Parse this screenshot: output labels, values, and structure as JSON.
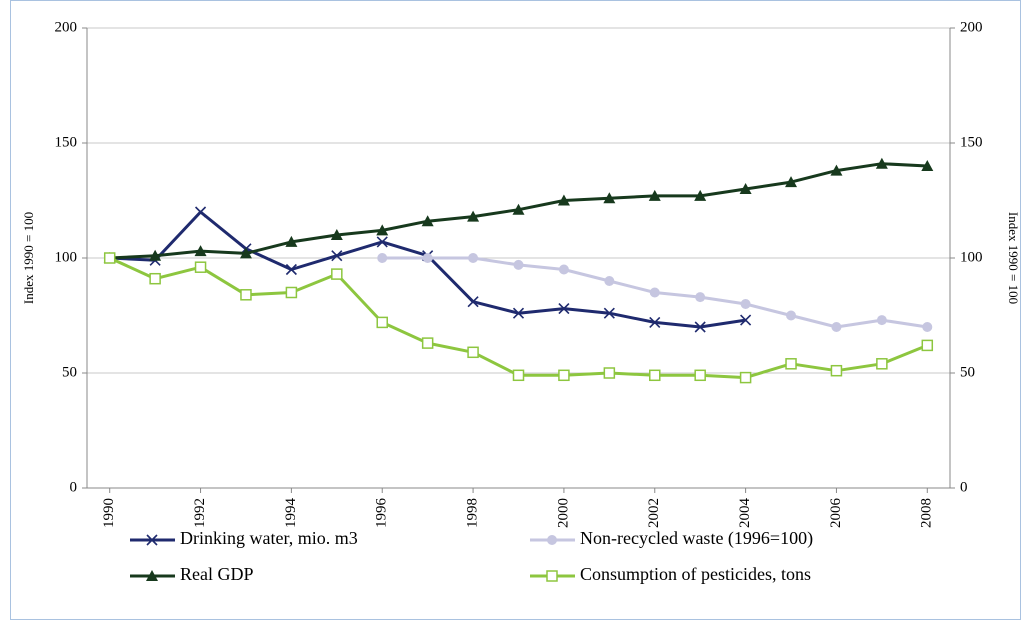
{
  "chart_data": {
    "type": "line",
    "y_label": "Index 1990 = 100",
    "y2_label": "Index 1990 = 100",
    "x": [
      1990,
      1991,
      1992,
      1993,
      1994,
      1995,
      1996,
      1997,
      1998,
      1999,
      2000,
      2001,
      2002,
      2003,
      2004,
      2005,
      2006,
      2007,
      2008
    ],
    "xlim": [
      1989.5,
      2008.5
    ],
    "xticks": [
      1990,
      1992,
      1994,
      1996,
      1998,
      2000,
      2002,
      2004,
      2006,
      2008
    ],
    "ylim": [
      0,
      200
    ],
    "yticks": [
      0,
      50,
      100,
      150,
      200
    ],
    "y2lim": [
      0,
      200
    ],
    "y2ticks": [
      0,
      50,
      100,
      150,
      200
    ],
    "grid": true,
    "legend": "bottom",
    "series": [
      {
        "name": "Drinking water, mio. m3",
        "color": "#1f2a6e",
        "marker": "x",
        "values": [
          100,
          99,
          120,
          104,
          95,
          101,
          107,
          101,
          81,
          76,
          78,
          76,
          72,
          70,
          73,
          null,
          null,
          null,
          null
        ]
      },
      {
        "name": "Non-recycled waste (1996=100)",
        "color": "#c6c6e0",
        "marker": "circle",
        "values": [
          null,
          null,
          null,
          null,
          null,
          null,
          100,
          100,
          100,
          97,
          95,
          90,
          85,
          83,
          80,
          75,
          70,
          73,
          70
        ]
      },
      {
        "name": "Real GDP",
        "color": "#17391d",
        "marker": "triangle",
        "values": [
          100,
          101,
          103,
          102,
          107,
          110,
          112,
          116,
          118,
          121,
          125,
          126,
          127,
          127,
          130,
          133,
          138,
          141,
          140
        ]
      },
      {
        "name": "Consumption of pesticides, tons",
        "color": "#8dc63f",
        "marker": "square",
        "values": [
          100,
          91,
          96,
          84,
          85,
          93,
          72,
          63,
          59,
          49,
          49,
          50,
          49,
          49,
          48,
          54,
          51,
          54,
          62
        ]
      }
    ]
  }
}
